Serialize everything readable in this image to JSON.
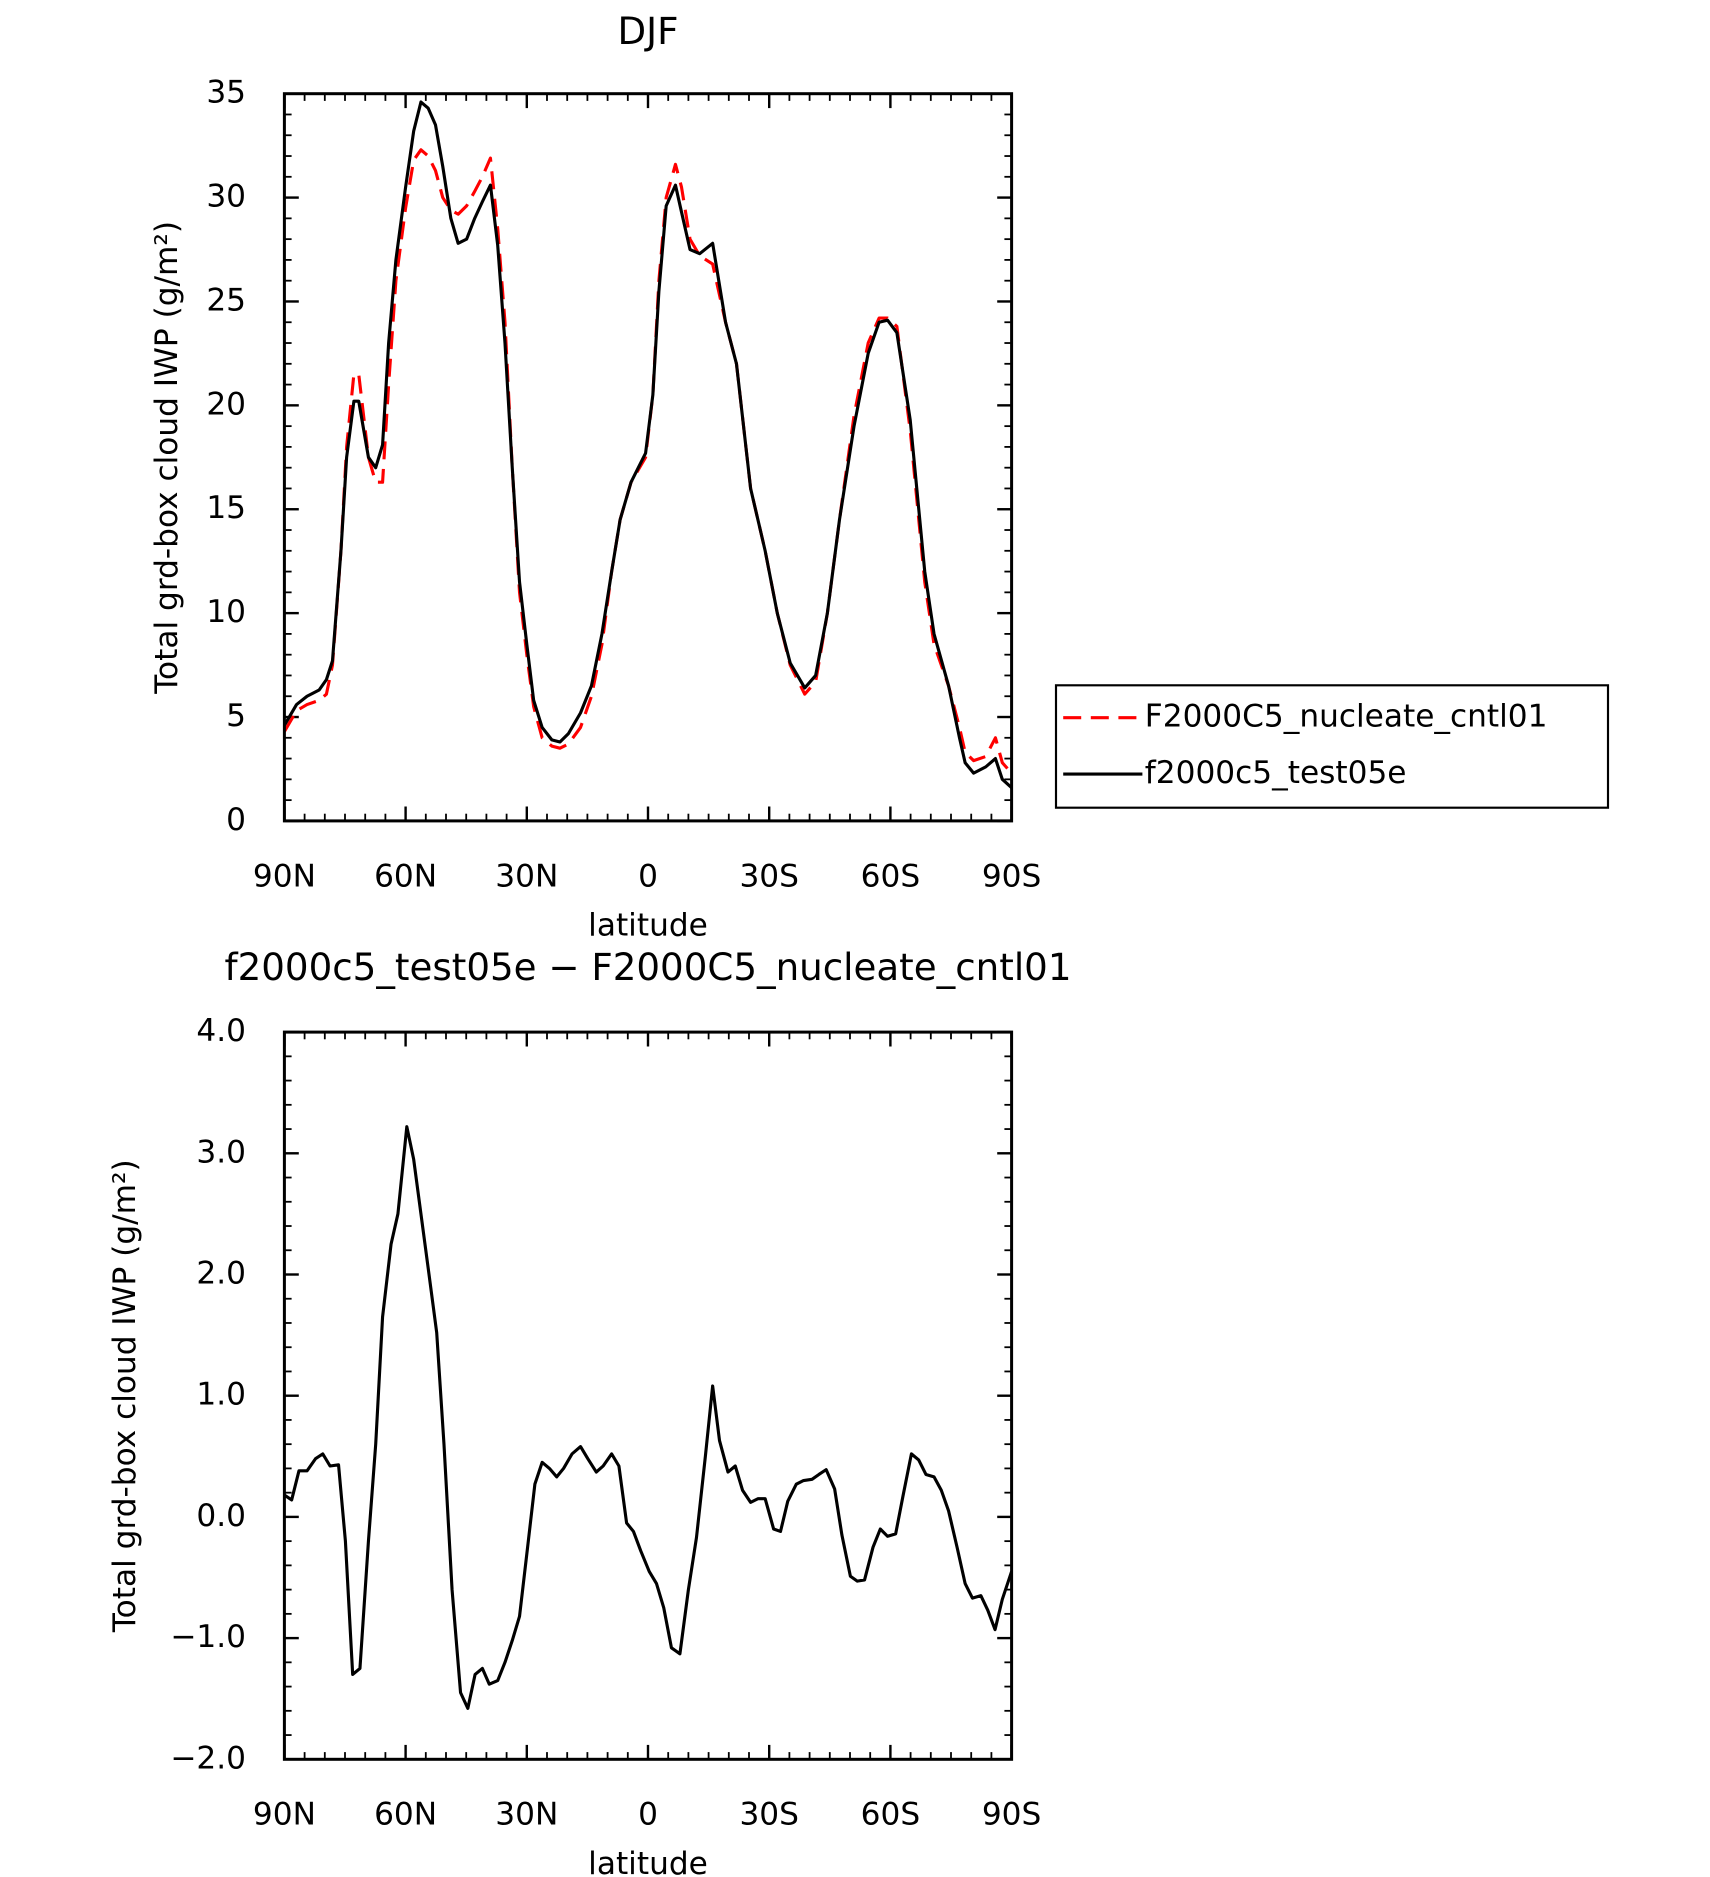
{
  "chart_data": [
    {
      "type": "line",
      "title": "DJF",
      "x_label": "latitude",
      "y_label": "Total grd-box cloud IWP (g/m²)",
      "x": [
        90,
        87,
        84.4,
        81.4,
        79.6,
        78.1,
        76,
        74.6,
        72.8,
        71.6,
        69.2,
        67.4,
        65.7,
        64.2,
        62.4,
        60,
        58,
        56.2,
        54.4,
        52.6,
        50.8,
        48.8,
        47,
        44.9,
        42.9,
        41,
        39,
        37.2,
        35.4,
        33.6,
        31.8,
        30,
        28.3,
        26.2,
        23.8,
        21.8,
        19.7,
        16.7,
        14,
        11.4,
        9,
        6.9,
        4.2,
        0.6,
        -1.2,
        -2.7,
        -4.5,
        -6.8,
        -8.3,
        -10.4,
        -12.8,
        -16,
        -19.2,
        -21.9,
        -25.4,
        -29,
        -32,
        -35.2,
        -38.8,
        -41.5,
        -44.4,
        -47.4,
        -51,
        -54.5,
        -57.2,
        -59.3,
        -61.6,
        -64.9,
        -68.5,
        -70.8,
        -74.4,
        -77.1,
        -78.5,
        -80.6,
        -83.6,
        -86,
        -87.7,
        -90
      ],
      "series": [
        {
          "name": "F2000C5_nucleate_cntl01",
          "color": "#ff0000",
          "dash": "dashed",
          "values": [
            4.3,
            5.3,
            5.6,
            5.8,
            6.1,
            7.5,
            13,
            18,
            21.5,
            21.5,
            17.5,
            16.3,
            16.3,
            21,
            26,
            29.5,
            31.8,
            32.3,
            32.0,
            31.3,
            30,
            29.4,
            29.2,
            29.6,
            30.3,
            31,
            31.9,
            28.5,
            24,
            17,
            11,
            8,
            5.5,
            4.0,
            3.6,
            3.5,
            3.7,
            4.5,
            6.0,
            8.5,
            12,
            14.5,
            16.3,
            17.5,
            20.5,
            26,
            30,
            31.6,
            30.5,
            28,
            27.2,
            26.8,
            24,
            22,
            16,
            13,
            10,
            7.5,
            6.1,
            6.7,
            10,
            14.5,
            19.5,
            23,
            24.2,
            24.2,
            23.8,
            18.8,
            11.5,
            8.5,
            6.5,
            4.5,
            3.3,
            2.9,
            3.1,
            4.0,
            2.8,
            2.3
          ]
        },
        {
          "name": "f2000c5_test05e",
          "color": "#000000",
          "dash": "solid",
          "values": [
            4.6,
            5.6,
            6.0,
            6.3,
            6.8,
            7.7,
            13,
            17.5,
            20.2,
            20.2,
            17.5,
            17.0,
            18.1,
            23,
            27,
            30.5,
            33.2,
            34.6,
            34.3,
            33.5,
            31.5,
            29,
            27.8,
            28,
            29,
            29.8,
            30.6,
            27.7,
            23,
            17,
            11.5,
            8.5,
            5.8,
            4.5,
            3.9,
            3.8,
            4.2,
            5.2,
            6.5,
            9,
            12,
            14.5,
            16.3,
            17.7,
            20.5,
            25.5,
            29.6,
            30.6,
            29.3,
            27.5,
            27.3,
            27.8,
            24,
            22,
            16,
            13,
            10,
            7.6,
            6.4,
            7.0,
            10,
            14.5,
            19,
            22.5,
            24,
            24.1,
            23.5,
            19.3,
            12,
            9,
            6.5,
            4,
            2.8,
            2.3,
            2.6,
            3.0,
            2.0,
            1.6
          ]
        }
      ],
      "xlim": [
        90,
        -90
      ],
      "xticks": [
        {
          "value": 90,
          "label": "90N"
        },
        {
          "value": 60,
          "label": "60N"
        },
        {
          "value": 30,
          "label": "30N"
        },
        0,
        {
          "value": -30,
          "label": "30S"
        },
        {
          "value": -60,
          "label": "60S"
        },
        {
          "value": -90,
          "label": "90S"
        }
      ],
      "ylim": [
        0,
        35
      ],
      "yticks": [
        0,
        5,
        10,
        15,
        20,
        25,
        30,
        35
      ],
      "legend": "right"
    },
    {
      "type": "line",
      "title": "f2000c5_test05e − F2000C5_nucleate_cntl01",
      "x_label": "latitude",
      "y_label": "Total grd-box cloud IWP (g/m²)",
      "x": [
        90,
        88.2,
        86.4,
        84.4,
        82.3,
        80.5,
        78.7,
        76.6,
        74.9,
        73.1,
        71.3,
        69.2,
        67.4,
        65.7,
        63.6,
        61.9,
        59.7,
        58,
        56.2,
        54.4,
        52.3,
        50.5,
        48.5,
        46.4,
        44.6,
        42.8,
        41,
        39.3,
        37.2,
        35.4,
        33.6,
        31.8,
        29.8,
        28,
        26.2,
        24.4,
        22.6,
        20.9,
        18.8,
        16.7,
        14.9,
        12.8,
        11.1,
        9,
        7.2,
        5.3,
        3.6,
        1.8,
        -0.3,
        -2.1,
        -3.9,
        -5.8,
        -7.9,
        -10,
        -12,
        -14.2,
        -16,
        -17.7,
        -19.8,
        -21.6,
        -23.4,
        -25.4,
        -27.2,
        -29,
        -31.1,
        -32.8,
        -34.6,
        -36.7,
        -38.5,
        -40.6,
        -42.3,
        -44.1,
        -46.2,
        -48,
        -50.1,
        -51.8,
        -53.6,
        -55.7,
        -57.5,
        -59.3,
        -61.3,
        -63.1,
        -65.2,
        -67,
        -68.8,
        -70.8,
        -72.6,
        -74.4,
        -76.5,
        -78.5,
        -80.3,
        -82.4,
        -84.1,
        -85.9,
        -87.7,
        -90
      ],
      "series": [
        {
          "color": "#000000",
          "dash": "solid",
          "values": [
            0.18,
            0.14,
            0.38,
            0.38,
            0.48,
            0.52,
            0.42,
            0.43,
            -0.2,
            -1.3,
            -1.25,
            -0.2,
            0.6,
            1.65,
            2.25,
            2.5,
            3.22,
            2.95,
            2.5,
            2.05,
            1.52,
            0.6,
            -0.6,
            -1.45,
            -1.58,
            -1.3,
            -1.25,
            -1.38,
            -1.35,
            -1.2,
            -1.02,
            -0.82,
            -0.25,
            0.27,
            0.45,
            0.4,
            0.33,
            0.4,
            0.52,
            0.58,
            0.48,
            0.37,
            0.42,
            0.52,
            0.42,
            -0.05,
            -0.12,
            -0.28,
            -0.45,
            -0.55,
            -0.75,
            -1.08,
            -1.13,
            -0.6,
            -0.17,
            0.5,
            1.08,
            0.63,
            0.37,
            0.42,
            0.22,
            0.12,
            0.15,
            0.15,
            -0.1,
            -0.12,
            0.13,
            0.27,
            0.3,
            0.31,
            0.35,
            0.39,
            0.23,
            -0.15,
            -0.49,
            -0.53,
            -0.52,
            -0.25,
            -0.1,
            -0.16,
            -0.14,
            0.17,
            0.52,
            0.47,
            0.35,
            0.33,
            0.22,
            0.05,
            -0.25,
            -0.55,
            -0.67,
            -0.65,
            -0.77,
            -0.93,
            -0.68,
            -0.45
          ]
        }
      ],
      "xlim": [
        90,
        -90
      ],
      "xticks": [
        {
          "value": 90,
          "label": "90N"
        },
        {
          "value": 60,
          "label": "60N"
        },
        {
          "value": 30,
          "label": "30N"
        },
        0,
        {
          "value": -30,
          "label": "30S"
        },
        {
          "value": -60,
          "label": "60S"
        },
        {
          "value": -90,
          "label": "90S"
        }
      ],
      "ylim": [
        -2,
        4
      ],
      "yticks": [
        {
          "value": -2,
          "label": "−2.0"
        },
        {
          "value": -1,
          "label": "−1.0"
        },
        {
          "value": 0,
          "label": "0.0"
        },
        {
          "value": 1,
          "label": "1.0"
        },
        {
          "value": 2,
          "label": "2.0"
        },
        {
          "value": 3,
          "label": "3.0"
        },
        {
          "value": 4,
          "label": "4.0"
        }
      ]
    }
  ]
}
